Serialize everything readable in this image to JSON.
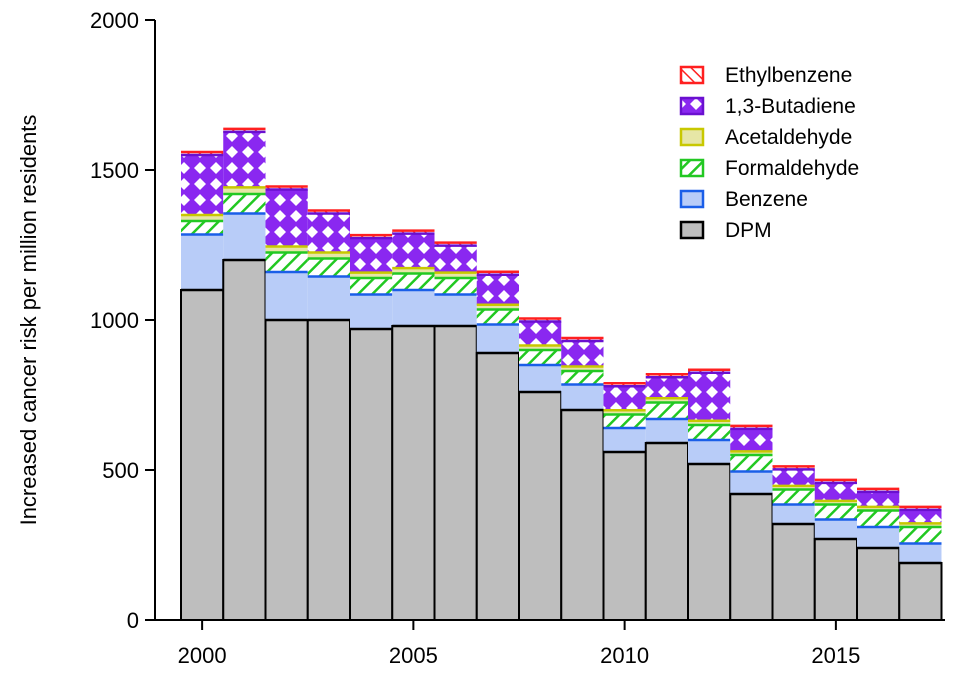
{
  "chart_data": {
    "type": "bar",
    "stacked": true,
    "title": "",
    "xlabel": "",
    "ylabel": "Increased cancer risk per million residents",
    "ylim": [
      0,
      2000
    ],
    "yticks": [
      0,
      500,
      1000,
      1500,
      2000
    ],
    "xticks": [
      2000,
      2005,
      2010,
      2015
    ],
    "grid": false,
    "legend_position": "top-right",
    "categories": [
      2000,
      2001,
      2002,
      2003,
      2004,
      2005,
      2006,
      2007,
      2008,
      2009,
      2010,
      2011,
      2012,
      2013,
      2014,
      2015,
      2016,
      2017
    ],
    "series": [
      {
        "name": "DPM",
        "color": "#bebebe",
        "stroke": "#000000",
        "pattern": "solid",
        "values": [
          1100,
          1200,
          1000,
          1000,
          970,
          980,
          980,
          890,
          760,
          700,
          560,
          590,
          520,
          420,
          320,
          270,
          240,
          190
        ]
      },
      {
        "name": "Benzene",
        "color": "#b8ccf8",
        "stroke": "#1a5ee8",
        "pattern": "solid",
        "values": [
          185,
          155,
          160,
          145,
          115,
          120,
          105,
          95,
          90,
          85,
          80,
          80,
          80,
          75,
          65,
          65,
          70,
          65
        ]
      },
      {
        "name": "Formaldehyde",
        "color": "#ffffff",
        "stroke": "#22c822",
        "pattern": "diagonal",
        "values": [
          45,
          65,
          65,
          60,
          55,
          55,
          55,
          50,
          50,
          45,
          45,
          55,
          50,
          55,
          50,
          50,
          55,
          55
        ]
      },
      {
        "name": "Acetaldehyde",
        "color": "#e6e6a6",
        "stroke": "#c8c800",
        "pattern": "solid",
        "values": [
          20,
          22,
          20,
          20,
          18,
          18,
          18,
          16,
          15,
          15,
          14,
          14,
          14,
          12,
          12,
          12,
          12,
          12
        ]
      },
      {
        "name": "1,3-Butadiene",
        "color": "#8a28f0",
        "stroke": "#6a10d0",
        "pattern": "diamond",
        "values": [
          200,
          185,
          190,
          130,
          115,
          115,
          90,
          100,
          80,
          85,
          80,
          70,
          160,
          75,
          55,
          60,
          50,
          45
        ]
      },
      {
        "name": "Ethylbenzene",
        "color": "#ffffff",
        "stroke": "#ff2020",
        "pattern": "diagonal-red",
        "values": [
          10,
          10,
          10,
          10,
          10,
          10,
          10,
          10,
          10,
          10,
          10,
          10,
          10,
          10,
          10,
          10,
          10,
          10
        ]
      }
    ],
    "legend_order": [
      "Ethylbenzene",
      "1,3-Butadiene",
      "Acetaldehyde",
      "Formaldehyde",
      "Benzene",
      "DPM"
    ]
  }
}
